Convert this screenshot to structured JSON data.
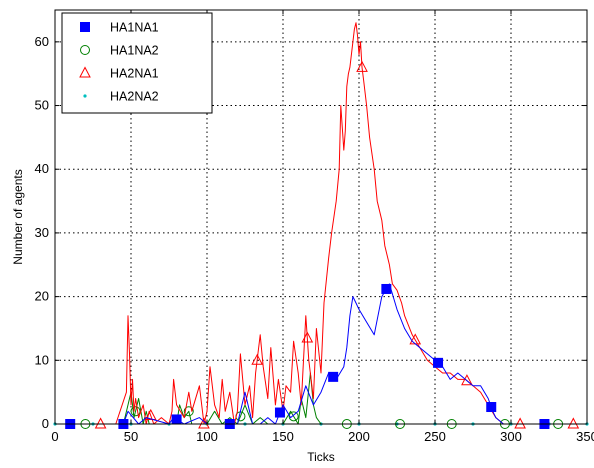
{
  "chart_data": {
    "type": "line",
    "title": "",
    "xlabel": "Ticks",
    "ylabel": "Number of agents",
    "xlim": [
      0,
      350
    ],
    "ylim": [
      0,
      65
    ],
    "xticks": [
      0,
      50,
      100,
      150,
      200,
      250,
      300,
      350
    ],
    "yticks": [
      0,
      10,
      20,
      30,
      40,
      50,
      60
    ],
    "grid": true,
    "legend_position": "top-left",
    "series": [
      {
        "name": "HA1NA1",
        "color": "#0000ff",
        "marker": "filled-square",
        "marker_x": [
          10,
          45,
          80,
          115,
          148,
          183,
          218,
          252,
          287,
          322
        ],
        "x": [
          0,
          45,
          48,
          55,
          60,
          75,
          78,
          85,
          95,
          100,
          110,
          115,
          120,
          125,
          130,
          135,
          140,
          145,
          150,
          155,
          160,
          165,
          170,
          175,
          180,
          185,
          190,
          192,
          194,
          196,
          198,
          200,
          205,
          210,
          215,
          220,
          225,
          230,
          235,
          240,
          245,
          250,
          255,
          260,
          265,
          270,
          275,
          280,
          285,
          288,
          290,
          295,
          300,
          310,
          320,
          330,
          350
        ],
        "values": [
          0,
          0,
          2,
          0,
          1,
          0,
          1,
          0,
          1,
          0,
          0,
          0,
          0,
          5,
          0,
          0,
          1,
          0,
          3,
          1,
          2,
          6,
          3,
          5,
          8,
          7,
          9,
          12,
          17,
          20,
          19,
          18,
          16,
          14,
          20,
          22,
          18,
          15,
          13,
          12,
          11,
          10,
          9,
          7,
          8,
          7,
          6,
          6,
          4,
          2,
          1,
          0,
          0,
          0,
          0,
          0,
          0
        ]
      },
      {
        "name": "HA1NA2",
        "color": "#008000",
        "marker": "hollow-circle",
        "marker_x": [
          20,
          53,
          88,
          122,
          157,
          192,
          227,
          261,
          296,
          331
        ],
        "x": [
          0,
          45,
          48,
          50,
          52,
          55,
          58,
          60,
          62,
          80,
          82,
          85,
          88,
          90,
          100,
          105,
          110,
          115,
          120,
          125,
          130,
          135,
          140,
          150,
          155,
          160,
          162,
          165,
          168,
          170,
          172,
          175,
          180,
          200,
          350
        ],
        "values": [
          0,
          0,
          3,
          5,
          1,
          4,
          0,
          2,
          0,
          0,
          3,
          1,
          2,
          0,
          0,
          2,
          0,
          1,
          0,
          3,
          0,
          1,
          0,
          0,
          2,
          0,
          4,
          1,
          8,
          3,
          1,
          0,
          0,
          0,
          0
        ]
      },
      {
        "name": "HA2NA1",
        "color": "#ff0000",
        "marker": "hollow-triangle",
        "marker_x": [
          30,
          63,
          98,
          133,
          166,
          202,
          237,
          271,
          306,
          341
        ],
        "x": [
          0,
          20,
          40,
          47,
          48,
          49,
          50,
          51,
          52,
          53,
          55,
          58,
          60,
          62,
          65,
          70,
          75,
          77,
          78,
          80,
          85,
          88,
          90,
          95,
          98,
          100,
          102,
          105,
          108,
          110,
          112,
          115,
          118,
          120,
          122,
          125,
          128,
          130,
          132,
          135,
          137,
          140,
          142,
          145,
          147,
          150,
          152,
          155,
          157,
          160,
          162,
          165,
          167,
          170,
          172,
          175,
          177,
          180,
          182,
          185,
          187,
          188,
          190,
          191,
          192,
          193,
          194,
          195,
          196,
          197,
          198,
          199,
          200,
          201,
          202,
          203,
          205,
          207,
          210,
          212,
          215,
          217,
          220,
          222,
          225,
          228,
          230,
          235,
          240,
          245,
          250,
          255,
          260,
          265,
          270,
          275,
          280,
          285,
          290,
          295,
          300,
          310,
          320,
          330,
          350
        ],
        "values": [
          0,
          0,
          0,
          5,
          17,
          11,
          3,
          7,
          2,
          4,
          1,
          3,
          0,
          2,
          0,
          1,
          0,
          2,
          7,
          3,
          1,
          5,
          2,
          6,
          0,
          2,
          9,
          3,
          1,
          7,
          2,
          5,
          0,
          2,
          11,
          3,
          6,
          1,
          8,
          14,
          9,
          4,
          12,
          3,
          7,
          2,
          6,
          5,
          13,
          8,
          3,
          17,
          10,
          4,
          15,
          8,
          19,
          26,
          30,
          35,
          40,
          50,
          43,
          46,
          53,
          55,
          56,
          58,
          60,
          62,
          63,
          61,
          58,
          60,
          56,
          54,
          50,
          45,
          40,
          35,
          32,
          28,
          25,
          22,
          21,
          19,
          17,
          14,
          12,
          10,
          9,
          8,
          8,
          7,
          7,
          6,
          5,
          3,
          1,
          0,
          0,
          0,
          0,
          0,
          0
        ]
      },
      {
        "name": "HA2NA2",
        "color": "#00bfbf",
        "marker": "dot",
        "marker_x": [
          0,
          25,
          50,
          75,
          100,
          125,
          150,
          175,
          200,
          225,
          250,
          275,
          300,
          325,
          350
        ],
        "x": [
          0,
          100,
          150,
          200,
          250,
          300,
          350
        ],
        "values": [
          0,
          0,
          0,
          0,
          0,
          0,
          0
        ]
      }
    ]
  }
}
